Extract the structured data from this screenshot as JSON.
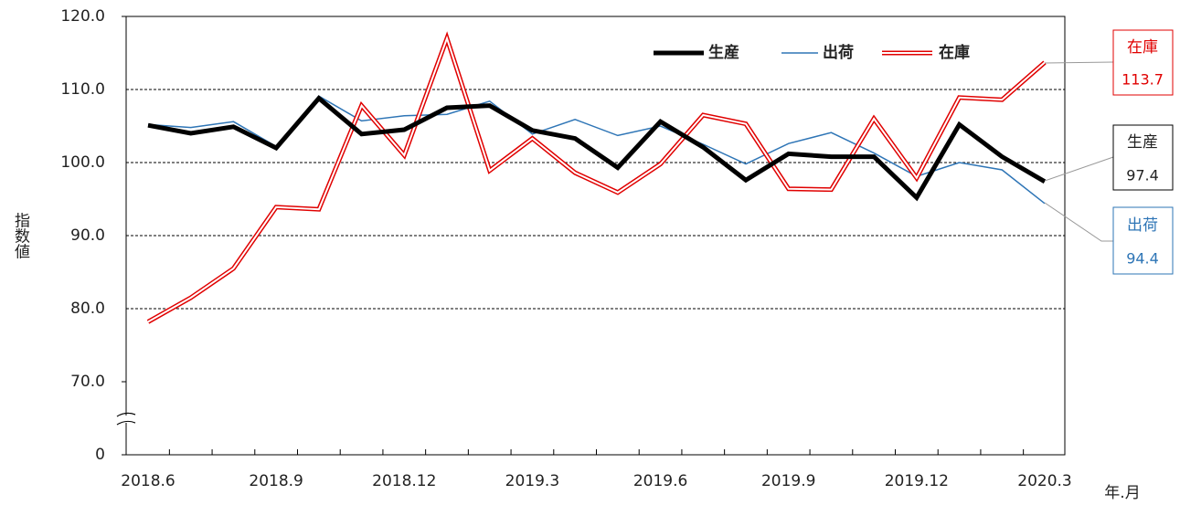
{
  "chart_data": {
    "type": "line",
    "y_label": "指数値",
    "x_label": "年.月",
    "categories": [
      "2018.6",
      null,
      null,
      "2018.9",
      null,
      null,
      "2018.12",
      null,
      null,
      "2019.3",
      null,
      null,
      "2019.6",
      null,
      null,
      "2019.9",
      null,
      null,
      "2019.12",
      null,
      null,
      "2020.3"
    ],
    "series": [
      {
        "name": "生産",
        "color": "#000000",
        "values": [
          105.1,
          104.0,
          104.9,
          102.0,
          108.8,
          103.9,
          104.5,
          107.5,
          107.8,
          104.4,
          103.3,
          99.3,
          105.6,
          102.1,
          97.6,
          101.2,
          100.8,
          100.8,
          95.2,
          105.2,
          100.8,
          97.4
        ]
      },
      {
        "name": "出荷",
        "color": "#2e75b6",
        "values": [
          105.2,
          104.8,
          105.6,
          102.2,
          109.1,
          105.7,
          106.4,
          106.6,
          108.4,
          103.9,
          105.9,
          103.7,
          105.0,
          102.5,
          99.8,
          102.6,
          104.1,
          101.3,
          98.1,
          100.0,
          99.0,
          94.4
        ]
      },
      {
        "name": "在庫",
        "color": "#e00000",
        "values": [
          78.2,
          81.5,
          85.5,
          93.9,
          93.6,
          107.8,
          101.0,
          117.0,
          98.9,
          103.3,
          98.6,
          95.9,
          99.8,
          106.5,
          105.3,
          96.4,
          96.3,
          106.0,
          97.9,
          108.9,
          108.6,
          113.7
        ]
      }
    ],
    "ylim": [
      0,
      120
    ],
    "axis_break": [
      0,
      70
    ],
    "yticks": [
      0,
      {
        "value": 70,
        "label": "70.0"
      },
      {
        "value": 80,
        "label": "80.0"
      },
      {
        "value": 90,
        "label": "90.0"
      },
      {
        "value": 100,
        "label": "100.0"
      },
      {
        "value": 110,
        "label": "110.0"
      },
      {
        "value": 120,
        "label": "120.0"
      }
    ],
    "grid": true
  }
}
